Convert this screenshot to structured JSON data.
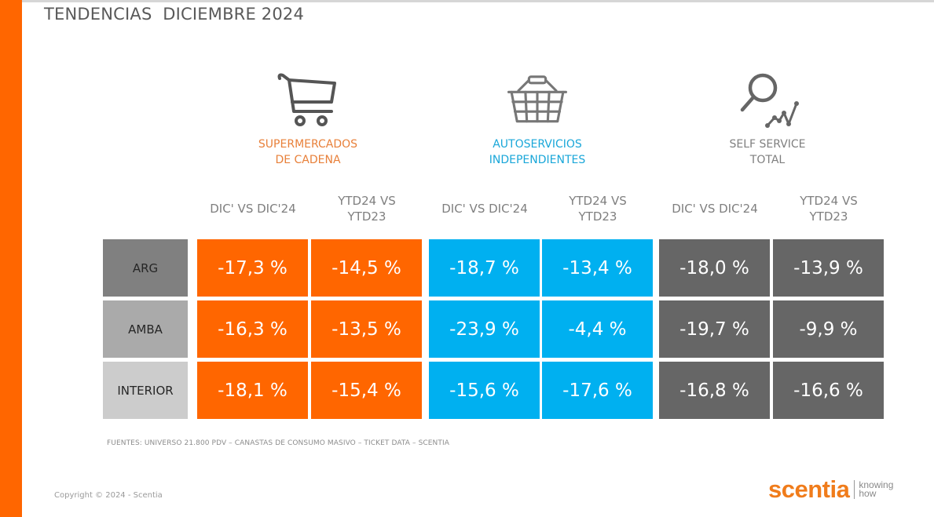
{
  "page": {
    "title": "TENDENCIAS  DICIEMBRE 2024",
    "sources": "FUENTES: UNIVERSO 21.800 PDV – CANASTAS DE CONSUMO MASIVO – TICKET DATA  – SCENTIA",
    "copyright": "Copyright © 2024 - Scentia",
    "brand": {
      "name": "scentia",
      "tagline": "knowing\nhow"
    }
  },
  "colors": {
    "accent_orange": "#ff6600",
    "accent_blue": "#00b0f0",
    "dark_gray": "#666666",
    "row_arg": "#808080",
    "row_amba": "#aaaaaa",
    "row_interior": "#cccccc"
  },
  "segments": [
    {
      "label": "SUPERMERCADOS\nDE CADENA",
      "icon": "shopping-cart-icon",
      "label_color": "#e8803a",
      "cell_color": "#ff6600"
    },
    {
      "label": "AUTOSERVICIOS\nINDEPENDIENTES",
      "icon": "shopping-basket-icon",
      "label_color": "#1aa7d9",
      "cell_color": "#00b0f0"
    },
    {
      "label": "SELF SERVICE\nTOTAL",
      "icon": "search-trend-icon",
      "label_color": "#7f7f7f",
      "cell_color": "#666666"
    }
  ],
  "chart_data": {
    "type": "table",
    "title": "TENDENCIAS  DICIEMBRE 2024",
    "unit": "%",
    "column_groups": [
      "SUPERMERCADOS DE CADENA",
      "AUTOSERVICIOS INDEPENDIENTES",
      "SELF SERVICE TOTAL"
    ],
    "columns": [
      "DIC' VS DIC'24",
      "YTD24 VS\nYTD23",
      "DIC' VS DIC'24",
      "YTD24 VS\nYTD23",
      "DIC' VS DIC'24",
      "YTD24 VS\nYTD23"
    ],
    "rows": [
      "ARG",
      "AMBA",
      "INTERIOR"
    ],
    "values": [
      [
        -17.3,
        -14.5,
        -18.7,
        -13.4,
        -18.0,
        -13.9
      ],
      [
        -16.3,
        -13.5,
        -23.9,
        -4.4,
        -19.7,
        -9.9
      ],
      [
        -18.1,
        -15.4,
        -15.6,
        -17.6,
        -16.8,
        -16.6
      ]
    ],
    "labels": [
      [
        "-17,3 %",
        "-14,5 %",
        "-18,7 %",
        "-13,4 %",
        "-18,0 %",
        "-13,9 %"
      ],
      [
        "-16,3 %",
        "-13,5 %",
        "-23,9 %",
        "-4,4 %",
        "-19,7 %",
        "-9,9 %"
      ],
      [
        "-18,1 %",
        "-15,4 %",
        "-15,6 %",
        "-17,6 %",
        "-16,8 %",
        "-16,6 %"
      ]
    ]
  }
}
